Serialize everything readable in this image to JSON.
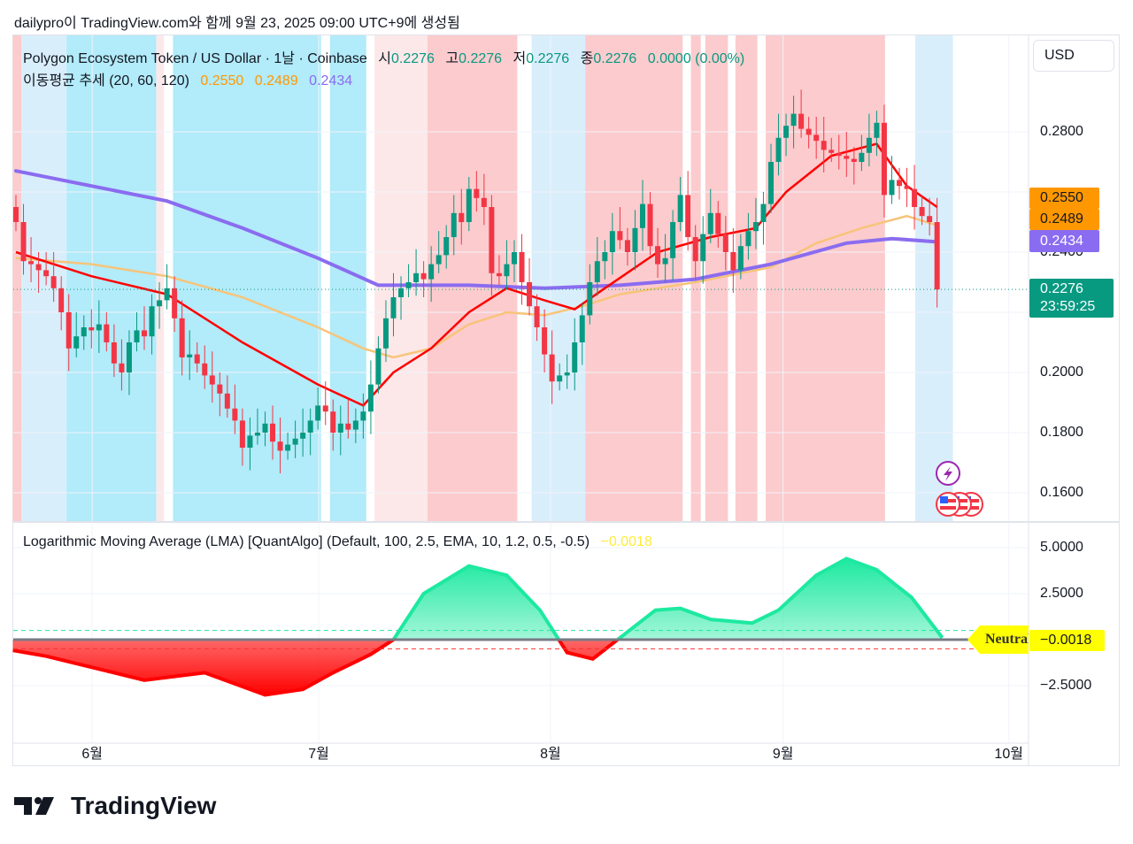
{
  "caption": "dailypro이 TradingView.com와 함께 9월 23, 2025 09:00 UTC+9에 생성됨",
  "header": {
    "symbol": "Polygon Ecosystem Token / US Dollar · 1날 · Coinbase",
    "open_label": "시",
    "open": "0.2276",
    "high_label": "고",
    "high": "0.2276",
    "low_label": "저",
    "low": "0.2276",
    "close_label": "종",
    "close": "0.2276",
    "change": "0.0000 (0.00%)",
    "ma_title": "이동평균 추세 (20, 60, 120)",
    "ma20": "0.2550",
    "ma60": "0.2489",
    "ma120": "0.2434"
  },
  "currency": "USD",
  "price_axis": [
    "0.2800",
    "0.2400",
    "0.2000",
    "0.1800",
    "0.1600"
  ],
  "price_tags": {
    "ma20": "0.2550",
    "ma60": "0.2489",
    "ma120": "0.2434",
    "last": "0.2276",
    "countdown": "23:59:25"
  },
  "indicator": {
    "title": "Logarithmic Moving Average (LMA) [QuantAlgo] (Default, 100, 2.5, EMA, 10, 1.2, 0.5, -0.5)",
    "value": "−0.0018",
    "axis": [
      "5.0000",
      "2.5000",
      "−2.5000"
    ],
    "neutral_label": "Neutral",
    "value_tag": "−0.0018"
  },
  "time_axis": [
    {
      "label": "6월",
      "day": 10.1
    },
    {
      "label": "7월",
      "day": 40.1
    },
    {
      "label": "8월",
      "day": 70.8
    },
    {
      "label": "9월",
      "day": 101.6
    },
    {
      "label": "10월",
      "day": 131.5
    }
  ],
  "colors": {
    "up": "#089981",
    "down": "#f23645",
    "ma20": "#ff0000",
    "ma60": "#f7c47a",
    "ma120": "#8a6cf0",
    "pink": "#fccbcd",
    "pink_light": "#fde8e9",
    "cyan": "#b2ebf9",
    "blue_light": "#d9eefb"
  },
  "chart_data": {
    "type": "candlestick",
    "first_day": "2025-05-22",
    "closes": [
      0.25,
      0.237,
      0.236,
      0.234,
      0.232,
      0.228,
      0.22,
      0.208,
      0.212,
      0.215,
      0.214,
      0.216,
      0.21,
      0.203,
      0.2,
      0.21,
      0.214,
      0.212,
      0.222,
      0.224,
      0.228,
      0.218,
      0.205,
      0.206,
      0.203,
      0.199,
      0.196,
      0.193,
      0.188,
      0.184,
      0.175,
      0.179,
      0.18,
      0.183,
      0.177,
      0.174,
      0.176,
      0.178,
      0.18,
      0.184,
      0.189,
      0.187,
      0.18,
      0.183,
      0.181,
      0.184,
      0.187,
      0.196,
      0.208,
      0.218,
      0.225,
      0.228,
      0.23,
      0.233,
      0.231,
      0.236,
      0.239,
      0.245,
      0.253,
      0.25,
      0.261,
      0.258,
      0.255,
      0.233,
      0.232,
      0.236,
      0.24,
      0.23,
      0.222,
      0.215,
      0.206,
      0.197,
      0.199,
      0.2,
      0.21,
      0.219,
      0.23,
      0.237,
      0.24,
      0.247,
      0.244,
      0.24,
      0.248,
      0.256,
      0.242,
      0.236,
      0.238,
      0.25,
      0.259,
      0.245,
      0.237,
      0.246,
      0.253,
      0.246,
      0.24,
      0.234,
      0.242,
      0.247,
      0.25,
      0.256,
      0.27,
      0.278,
      0.282,
      0.286,
      0.281,
      0.279,
      0.277,
      0.274,
      0.273,
      0.272,
      0.271,
      0.27,
      0.273,
      0.278,
      0.283,
      0.259,
      0.264,
      0.262,
      0.261,
      0.255,
      0.252,
      0.25,
      0.2276
    ],
    "ma20": [
      [
        0,
        0.24
      ],
      [
        10,
        0.232
      ],
      [
        20,
        0.226
      ],
      [
        30,
        0.21
      ],
      [
        40,
        0.196
      ],
      [
        46,
        0.189
      ],
      [
        50,
        0.2
      ],
      [
        55,
        0.208
      ],
      [
        60,
        0.22
      ],
      [
        65,
        0.228
      ],
      [
        70,
        0.224
      ],
      [
        74,
        0.221
      ],
      [
        78,
        0.228
      ],
      [
        85,
        0.24
      ],
      [
        92,
        0.245
      ],
      [
        98,
        0.248
      ],
      [
        102,
        0.26
      ],
      [
        108,
        0.272
      ],
      [
        114,
        0.276
      ],
      [
        118,
        0.262
      ],
      [
        122,
        0.255
      ]
    ],
    "ma60": [
      [
        0,
        0.238
      ],
      [
        10,
        0.236
      ],
      [
        20,
        0.232
      ],
      [
        30,
        0.225
      ],
      [
        40,
        0.215
      ],
      [
        46,
        0.208
      ],
      [
        50,
        0.205
      ],
      [
        55,
        0.208
      ],
      [
        60,
        0.216
      ],
      [
        65,
        0.22
      ],
      [
        70,
        0.219
      ],
      [
        75,
        0.222
      ],
      [
        80,
        0.226
      ],
      [
        90,
        0.23
      ],
      [
        100,
        0.235
      ],
      [
        106,
        0.243
      ],
      [
        112,
        0.248
      ],
      [
        118,
        0.252
      ],
      [
        122,
        0.2489
      ]
    ],
    "ma120": [
      [
        0,
        0.267
      ],
      [
        10,
        0.262
      ],
      [
        20,
        0.257
      ],
      [
        30,
        0.248
      ],
      [
        40,
        0.238
      ],
      [
        48,
        0.229
      ],
      [
        60,
        0.229
      ],
      [
        70,
        0.228
      ],
      [
        80,
        0.229
      ],
      [
        90,
        0.231
      ],
      [
        100,
        0.236
      ],
      [
        110,
        0.243
      ],
      [
        116,
        0.2445
      ],
      [
        122,
        0.2434
      ]
    ],
    "trend_bands": [
      [
        -0.4,
        0.7,
        "pink"
      ],
      [
        0.7,
        6.7,
        "blue_light"
      ],
      [
        6.7,
        18.6,
        "cyan"
      ],
      [
        18.6,
        19.6,
        "pink_light"
      ],
      [
        20.8,
        40.4,
        "cyan"
      ],
      [
        41.6,
        46.4,
        "cyan"
      ],
      [
        47.5,
        54.5,
        "pink_light"
      ],
      [
        54.5,
        66.4,
        "pink"
      ],
      [
        68.3,
        75.4,
        "blue_light"
      ],
      [
        75.4,
        88.3,
        "pink"
      ],
      [
        89.4,
        90.7,
        "pink"
      ],
      [
        91.3,
        94.3,
        "pink"
      ],
      [
        95.3,
        98.2,
        "pink"
      ],
      [
        99.3,
        115.1,
        "pink"
      ],
      [
        119.1,
        124.1,
        "blue_light"
      ]
    ],
    "lma": [
      [
        -0.4,
        -0.58
      ],
      [
        4,
        -0.9
      ],
      [
        10,
        -1.5
      ],
      [
        17,
        -2.2
      ],
      [
        25,
        -1.8
      ],
      [
        33,
        -3.0
      ],
      [
        38,
        -2.7
      ],
      [
        42,
        -1.8
      ],
      [
        47,
        -0.8
      ],
      [
        50,
        0
      ],
      [
        54,
        2.5
      ],
      [
        60,
        4.0
      ],
      [
        65,
        3.5
      ],
      [
        69.4,
        1.6
      ],
      [
        73,
        -0.7
      ],
      [
        76.4,
        -1.05
      ],
      [
        80,
        0.1
      ],
      [
        84.7,
        1.6
      ],
      [
        88,
        1.7
      ],
      [
        92,
        1.1
      ],
      [
        97.5,
        0.9
      ],
      [
        101,
        1.6
      ],
      [
        106,
        3.5
      ],
      [
        110,
        4.4
      ],
      [
        114,
        3.8
      ],
      [
        118.6,
        2.3
      ],
      [
        122.7,
        0.1
      ]
    ],
    "lma_upper": 0.5,
    "lma_lower": -0.5,
    "price_range": [
      0.15,
      0.3
    ],
    "lma_range": [
      -3.5,
      6.0
    ]
  }
}
